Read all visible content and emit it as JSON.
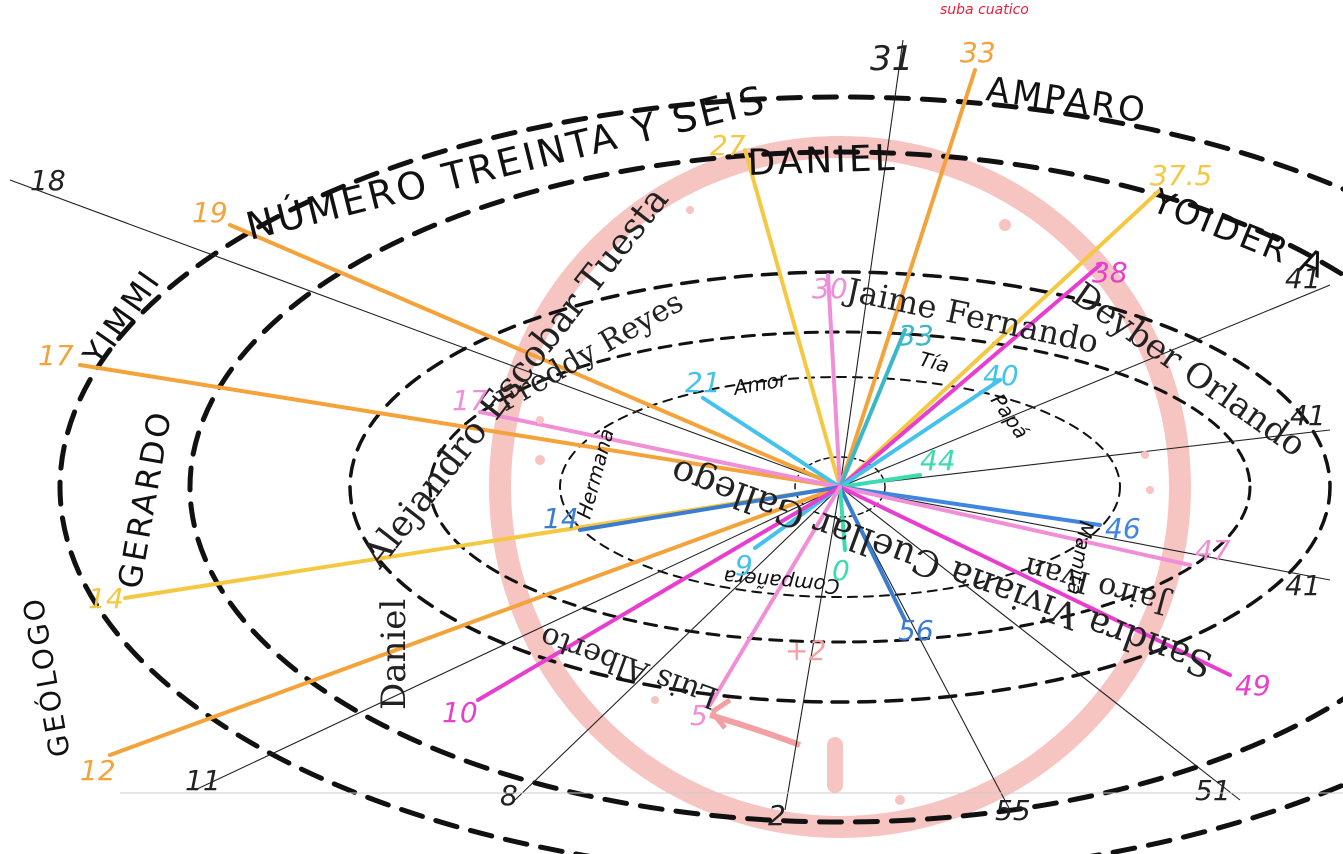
{
  "top_note": "suba cuatico",
  "ring_names": {
    "outer_top": "NÚMERO TREINTA Y SEIS",
    "amparo": "AMPARO",
    "daniel_caps": "DANIEL",
    "yoider": "YOIDER A",
    "yimmi": "YIMMI",
    "gerardo": "GERARDO",
    "geologo": "GEÓLOGO",
    "alejandro": "Alejandro Escobar Tuesta",
    "freddy": "Freddy Reyes",
    "jaime": "Jaime Fernando",
    "deyber": "Deyber Orlando",
    "daniel": "Daniel",
    "luis": "Luis Alberto",
    "sandra": "Sandra Viviana Cuellar Gallego",
    "jairo": "Jairo Ivan"
  },
  "inner_words": {
    "amor": "Amor",
    "tia": "Tía",
    "papa": "Papá",
    "hermana": "Hermana",
    "mamita": "Mamita",
    "companera": "Compañera"
  },
  "ages": {
    "a33_top": "33",
    "a31": "31",
    "a27": "27",
    "a37_5": "37.5",
    "a19": "19",
    "a18": "18",
    "a38": "38",
    "a30": "30",
    "a33_inner": "33",
    "a40": "40",
    "a41_r": "41",
    "a17_l": "17",
    "a17_in": "17",
    "a21": "21",
    "a44": "44",
    "a46": "46",
    "a47": "47",
    "a14_l": "14",
    "a14_in": "14",
    "a9": "9",
    "a0": "0",
    "a56": "56",
    "a49": "49",
    "a12": "12",
    "a10": "10",
    "a5": "5",
    "a11": "11",
    "a8": "8",
    "a2": "2",
    "a55": "55",
    "a51": "51",
    "a41": "41",
    "a41b": "41",
    "plus2": "+2"
  },
  "colors": {
    "orange": "#F4A23A",
    "yellow": "#F5C842",
    "magenta": "#E83ED0",
    "pink": "#F08ED8",
    "sky": "#45C2EC",
    "blue": "#3F86E0",
    "teal": "#3DDBB0",
    "darkblue": "#3A7CD0",
    "ring": "#F5B9B7",
    "note": "#E81E3A"
  }
}
